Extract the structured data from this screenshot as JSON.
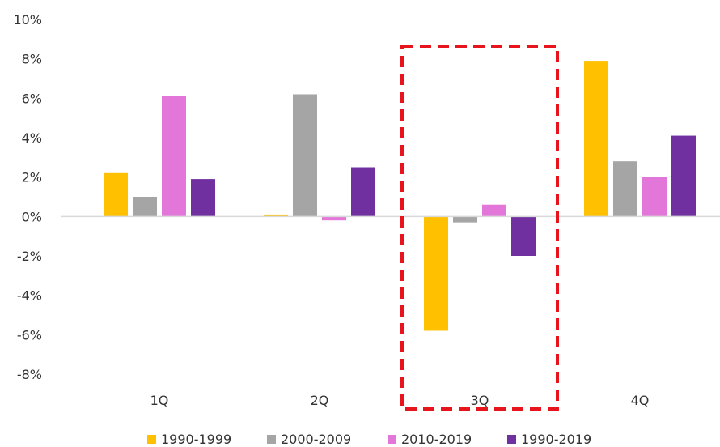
{
  "chart_data": {
    "type": "bar",
    "title": "",
    "xlabel": "",
    "ylabel": "",
    "categories": [
      "1Q",
      "2Q",
      "3Q",
      "4Q"
    ],
    "ylim": [
      -8,
      10
    ],
    "ytick_step": 2,
    "ytick_format": "percent",
    "grid": false,
    "legend_position": "bottom",
    "highlight": {
      "category": "3Q",
      "style": "dashed box",
      "color": "#e8141b"
    },
    "series": [
      {
        "name": "1990-1999",
        "color": "#ffc000",
        "values": [
          2.2,
          0.1,
          -5.8,
          7.9
        ]
      },
      {
        "name": "2000-2009",
        "color": "#a5a5a5",
        "values": [
          1.0,
          6.2,
          -0.3,
          2.8
        ]
      },
      {
        "name": "2010-2019",
        "color": "#e377d9",
        "values": [
          6.1,
          -0.2,
          0.6,
          2.0
        ]
      },
      {
        "name": "1990-2019",
        "color": "#7030a0",
        "values": [
          1.9,
          2.5,
          -2.0,
          4.1
        ]
      }
    ]
  }
}
